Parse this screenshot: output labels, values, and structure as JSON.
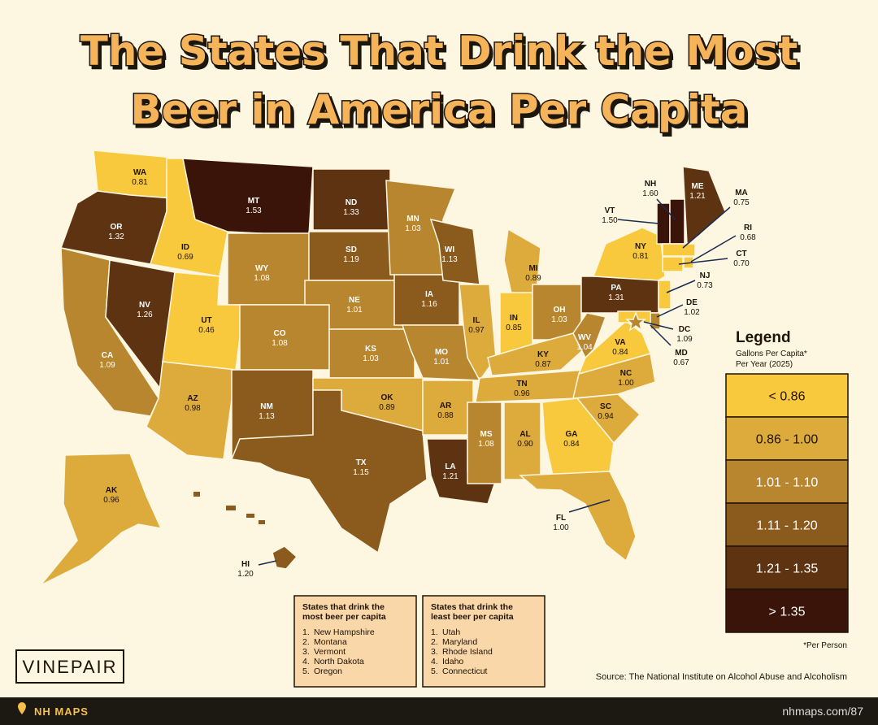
{
  "title": [
    "The States That Drink the Most",
    "Beer in America Per Capita"
  ],
  "states": [
    {
      "abbr": "WA",
      "value": "0.81",
      "color": "#f9c93d"
    },
    {
      "abbr": "OR",
      "value": "1.32",
      "color": "#5e3312"
    },
    {
      "abbr": "CA",
      "value": "1.09",
      "color": "#b8862f"
    },
    {
      "abbr": "NV",
      "value": "1.26",
      "color": "#5e3312"
    },
    {
      "abbr": "ID",
      "value": "0.69",
      "color": "#f9c93d"
    },
    {
      "abbr": "MT",
      "value": "1.53",
      "color": "#3a1408"
    },
    {
      "abbr": "WY",
      "value": "1.08",
      "color": "#b8862f"
    },
    {
      "abbr": "UT",
      "value": "0.46",
      "color": "#f9c93d"
    },
    {
      "abbr": "AZ",
      "value": "0.98",
      "color": "#ddaa3c"
    },
    {
      "abbr": "CO",
      "value": "1.08",
      "color": "#b8862f"
    },
    {
      "abbr": "NM",
      "value": "1.13",
      "color": "#8b5a1d"
    },
    {
      "abbr": "ND",
      "value": "1.33",
      "color": "#5e3312"
    },
    {
      "abbr": "SD",
      "value": "1.19",
      "color": "#8b5a1d"
    },
    {
      "abbr": "NE",
      "value": "1.01",
      "color": "#b8862f"
    },
    {
      "abbr": "KS",
      "value": "1.03",
      "color": "#b8862f"
    },
    {
      "abbr": "OK",
      "value": "0.89",
      "color": "#ddaa3c"
    },
    {
      "abbr": "TX",
      "value": "1.15",
      "color": "#8b5a1d"
    },
    {
      "abbr": "MN",
      "value": "1.03",
      "color": "#b8862f"
    },
    {
      "abbr": "IA",
      "value": "1.16",
      "color": "#8b5a1d"
    },
    {
      "abbr": "MO",
      "value": "1.01",
      "color": "#b8862f"
    },
    {
      "abbr": "AR",
      "value": "0.88",
      "color": "#ddaa3c"
    },
    {
      "abbr": "LA",
      "value": "1.21",
      "color": "#5e3312"
    },
    {
      "abbr": "WI",
      "value": "1.13",
      "color": "#8b5a1d"
    },
    {
      "abbr": "IL",
      "value": "0.97",
      "color": "#ddaa3c"
    },
    {
      "abbr": "MI",
      "value": "0.89",
      "color": "#ddaa3c"
    },
    {
      "abbr": "IN",
      "value": "0.85",
      "color": "#f9c93d"
    },
    {
      "abbr": "OH",
      "value": "1.03",
      "color": "#b8862f"
    },
    {
      "abbr": "KY",
      "value": "0.87",
      "color": "#ddaa3c"
    },
    {
      "abbr": "TN",
      "value": "0.96",
      "color": "#ddaa3c"
    },
    {
      "abbr": "MS",
      "value": "1.08",
      "color": "#b8862f"
    },
    {
      "abbr": "AL",
      "value": "0.90",
      "color": "#ddaa3c"
    },
    {
      "abbr": "GA",
      "value": "0.84",
      "color": "#f9c93d"
    },
    {
      "abbr": "FL",
      "value": "1.00",
      "color": "#ddaa3c"
    },
    {
      "abbr": "SC",
      "value": "0.94",
      "color": "#ddaa3c"
    },
    {
      "abbr": "NC",
      "value": "1.00",
      "color": "#ddaa3c"
    },
    {
      "abbr": "VA",
      "value": "0.84",
      "color": "#f9c93d"
    },
    {
      "abbr": "WV",
      "value": "1.04",
      "color": "#b8862f"
    },
    {
      "abbr": "PA",
      "value": "1.31",
      "color": "#5e3312"
    },
    {
      "abbr": "NY",
      "value": "0.81",
      "color": "#f9c93d"
    },
    {
      "abbr": "ME",
      "value": "1.21",
      "color": "#5e3312"
    },
    {
      "abbr": "VT",
      "value": "1.50",
      "color": "#3a1408"
    },
    {
      "abbr": "NH",
      "value": "1.60",
      "color": "#3a1408"
    },
    {
      "abbr": "MA",
      "value": "0.75",
      "color": "#f9c93d"
    },
    {
      "abbr": "RI",
      "value": "0.68",
      "color": "#f9c93d"
    },
    {
      "abbr": "CT",
      "value": "0.70",
      "color": "#f9c93d"
    },
    {
      "abbr": "NJ",
      "value": "0.73",
      "color": "#f9c93d"
    },
    {
      "abbr": "DE",
      "value": "1.02",
      "color": "#b8862f"
    },
    {
      "abbr": "MD",
      "value": "0.67",
      "color": "#f9c93d"
    },
    {
      "abbr": "DC",
      "value": "1.09",
      "color": "#b8862f"
    },
    {
      "abbr": "AK",
      "value": "0.96",
      "color": "#ddaa3c"
    },
    {
      "abbr": "HI",
      "value": "1.20",
      "color": "#8b5a1d"
    }
  ],
  "legend": {
    "title": "Legend",
    "subtitle": [
      "Gallons Per Capita*",
      "Per Year (2025)"
    ],
    "bins": [
      {
        "label": "< 0.86",
        "color": "#f9c93d"
      },
      {
        "label": "0.86 - 1.00",
        "color": "#ddaa3c"
      },
      {
        "label": "1.01 - 1.10",
        "color": "#b8862f"
      },
      {
        "label": "1.11 - 1.20",
        "color": "#8b5a1d"
      },
      {
        "label": "1.21 - 1.35",
        "color": "#5e3312"
      },
      {
        "label": "> 1.35",
        "color": "#3a1408"
      }
    ],
    "note": "*Per Person"
  },
  "most": {
    "title": [
      "States that drink the",
      "most beer per capita"
    ],
    "items": [
      {
        "n": "1.",
        "name": "New Hampshire"
      },
      {
        "n": "2.",
        "name": "Montana"
      },
      {
        "n": "3.",
        "name": "Vermont"
      },
      {
        "n": "4.",
        "name": "North Dakota"
      },
      {
        "n": "5.",
        "name": "Oregon"
      }
    ]
  },
  "least": {
    "title": [
      "States that drink the",
      "least beer per capita"
    ],
    "items": [
      {
        "n": "1.",
        "name": "Utah"
      },
      {
        "n": "2.",
        "name": "Maryland"
      },
      {
        "n": "3.",
        "name": "Rhode Island"
      },
      {
        "n": "4.",
        "name": "Idaho"
      },
      {
        "n": "5.",
        "name": "Connecticut"
      }
    ]
  },
  "logo": "VINEPAIR",
  "source": "Source: The National Institute on Alcohol Abuse and Alcoholism",
  "footer": {
    "brand": "NH MAPS",
    "url": "nhmaps.com/87"
  }
}
